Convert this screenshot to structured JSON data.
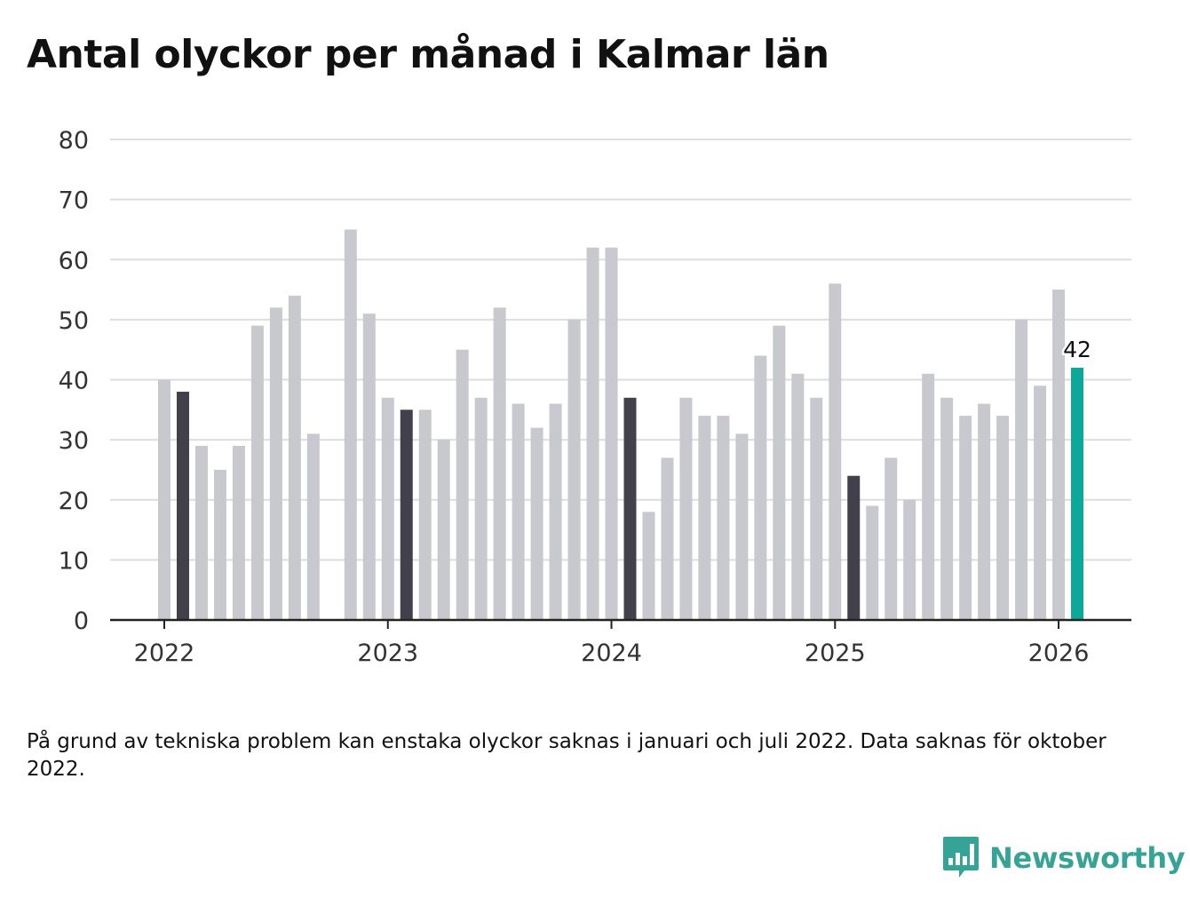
{
  "title": "Antal olyckor per månad i Kalmar län",
  "note": "På grund av tekniska problem kan enstaka olyckor saknas i januari och juli 2022. Data saknas för oktober 2022.",
  "brand": {
    "name": "Newsworthy",
    "icon": "newsworthy-logo-icon"
  },
  "colors": {
    "bar": "#c8c8cf",
    "highlight": "#42414b",
    "latest": "#0ea89b",
    "grid": "#dddddd",
    "axis": "#222222"
  },
  "chart_data": {
    "type": "bar",
    "title": "Antal olyckor per månad i Kalmar län",
    "ylim": [
      0,
      80
    ],
    "yticks": [
      0,
      10,
      20,
      30,
      40,
      50,
      60,
      70,
      80
    ],
    "x_tick_labels": [
      {
        "label": "2022",
        "index": 0
      },
      {
        "label": "2023",
        "index": 12
      },
      {
        "label": "2024",
        "index": 24
      },
      {
        "label": "2025",
        "index": 36
      },
      {
        "label": "2026",
        "index": 48
      }
    ],
    "months": [
      "2022-01",
      "2022-02",
      "2022-03",
      "2022-04",
      "2022-05",
      "2022-06",
      "2022-07",
      "2022-08",
      "2022-09",
      "2022-10",
      "2022-11",
      "2022-12",
      "2023-01",
      "2023-02",
      "2023-03",
      "2023-04",
      "2023-05",
      "2023-06",
      "2023-07",
      "2023-08",
      "2023-09",
      "2023-10",
      "2023-11",
      "2023-12",
      "2024-01",
      "2024-02",
      "2024-03",
      "2024-04",
      "2024-05",
      "2024-06",
      "2024-07",
      "2024-08",
      "2024-09",
      "2024-10",
      "2024-11",
      "2024-12",
      "2025-01",
      "2025-02",
      "2025-03",
      "2025-04",
      "2025-05",
      "2025-06",
      "2025-07",
      "2025-08",
      "2025-09",
      "2025-10",
      "2025-11",
      "2025-12",
      "2026-01",
      "2026-02"
    ],
    "values": [
      40,
      38,
      29,
      25,
      29,
      49,
      52,
      54,
      31,
      null,
      65,
      51,
      37,
      35,
      35,
      30,
      45,
      37,
      52,
      36,
      32,
      36,
      50,
      62,
      62,
      37,
      18,
      27,
      37,
      34,
      34,
      31,
      44,
      49,
      41,
      37,
      56,
      24,
      19,
      27,
      20,
      41,
      37,
      34,
      36,
      34,
      50,
      39,
      55,
      42
    ],
    "highlight_indices": [
      1,
      13,
      25,
      37
    ],
    "latest_index": 49,
    "latest_label": "42"
  }
}
